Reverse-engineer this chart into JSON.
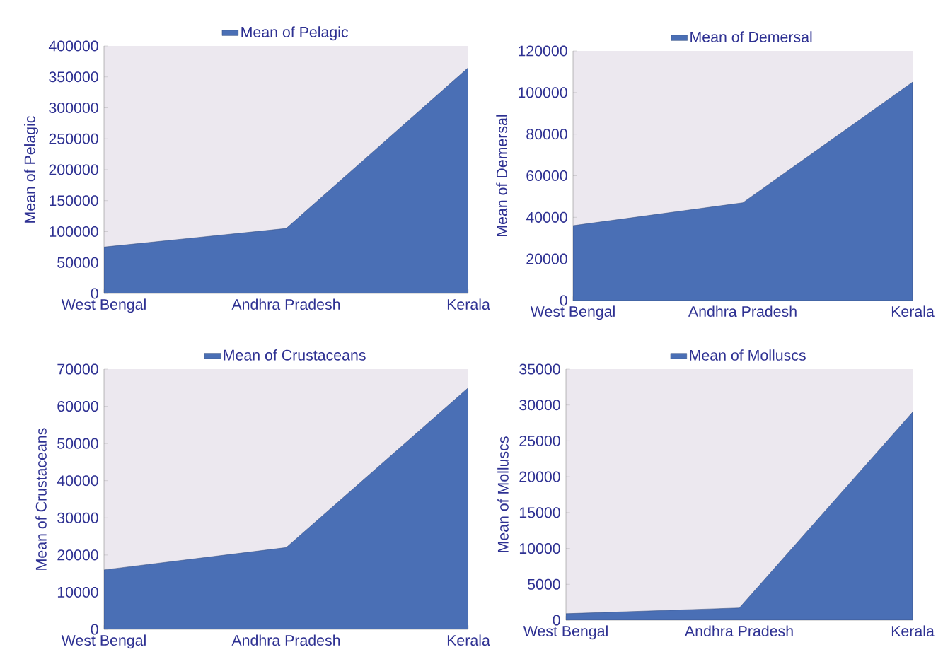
{
  "chart_data": [
    {
      "type": "area",
      "categories": [
        "West Bengal",
        "Andhra Pradesh",
        "Kerala"
      ],
      "ylabel": "Mean of Pelagic",
      "legend": "top",
      "ylim": [
        0,
        400000
      ],
      "yticks": [
        0,
        50000,
        100000,
        150000,
        200000,
        250000,
        300000,
        350000,
        400000
      ],
      "series": [
        {
          "name": "Mean of Pelagic",
          "color": "#4a6fb5",
          "values": [
            75000,
            105000,
            365000
          ]
        }
      ]
    },
    {
      "type": "area",
      "categories": [
        "West Bengal",
        "Andhra Pradesh",
        "Kerala"
      ],
      "ylabel": "Mean of Demersal",
      "legend": "top",
      "ylim": [
        0,
        120000
      ],
      "yticks": [
        0,
        20000,
        40000,
        60000,
        80000,
        100000,
        120000
      ],
      "series": [
        {
          "name": "Mean of Demersal",
          "color": "#4a6fb5",
          "values": [
            36000,
            47000,
            105000
          ]
        }
      ]
    },
    {
      "type": "area",
      "categories": [
        "West Bengal",
        "Andhra Pradesh",
        "Kerala"
      ],
      "ylabel": "Mean of Crustaceans",
      "legend": "top",
      "ylim": [
        0,
        70000
      ],
      "yticks": [
        0,
        10000,
        20000,
        30000,
        40000,
        50000,
        60000,
        70000
      ],
      "series": [
        {
          "name": "Mean of Crustaceans",
          "color": "#4a6fb5",
          "values": [
            16000,
            22000,
            65000
          ]
        }
      ]
    },
    {
      "type": "area",
      "categories": [
        "West Bengal",
        "Andhra Pradesh",
        "Kerala"
      ],
      "ylabel": "Mean of Molluscs",
      "legend": "top",
      "ylim": [
        0,
        35000
      ],
      "yticks": [
        0,
        5000,
        10000,
        15000,
        20000,
        25000,
        30000,
        35000
      ],
      "series": [
        {
          "name": "Mean of Molluscs",
          "color": "#4a6fb5",
          "values": [
            900,
            1700,
            29000
          ]
        }
      ]
    }
  ]
}
